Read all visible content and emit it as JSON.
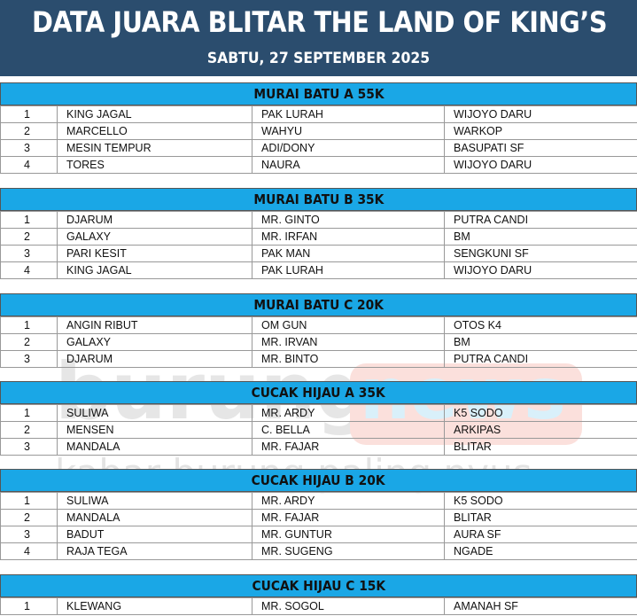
{
  "header": {
    "title": "DATA JUARA BLITAR THE LAND OF KING’S",
    "subtitle": "SABTU, 27 SEPTEMBER 2025"
  },
  "watermark": {
    "logo_text_1": "burung",
    "logo_text_2": "news",
    "tagline": "kabar burung paling nyus"
  },
  "colors": {
    "header_bg": "#2b4d6e",
    "section_bg": "#1aa7e6"
  },
  "sections": [
    {
      "title": "MURAI BATU A 55K",
      "rows": [
        [
          "1",
          "KING JAGAL",
          "PAK LURAH",
          "WIJOYO DARU"
        ],
        [
          "2",
          "MARCELLO",
          "WAHYU",
          "WARKOP"
        ],
        [
          "3",
          "MESIN TEMPUR",
          "ADI/DONY",
          "BASUPATI SF"
        ],
        [
          "4",
          "TORES",
          "NAURA",
          "WIJOYO DARU"
        ]
      ]
    },
    {
      "title": "MURAI BATU B 35K",
      "rows": [
        [
          "1",
          "DJARUM",
          "MR. GINTO",
          "PUTRA CANDI"
        ],
        [
          "2",
          "GALAXY",
          "MR. IRFAN",
          "BM"
        ],
        [
          "3",
          "PARI KESIT",
          "PAK MAN",
          "SENGKUNI SF"
        ],
        [
          "4",
          "KING JAGAL",
          "PAK LURAH",
          "WIJOYO DARU"
        ]
      ]
    },
    {
      "title": "MURAI BATU C 20K",
      "rows": [
        [
          "1",
          "ANGIN RIBUT",
          "OM GUN",
          "OTOS K4"
        ],
        [
          "2",
          "GALAXY",
          "MR. IRVAN",
          "BM"
        ],
        [
          "3",
          "DJARUM",
          "MR. BINTO",
          "PUTRA CANDI"
        ]
      ]
    },
    {
      "title": "CUCAK HIJAU A 35K",
      "rows": [
        [
          "1",
          "SULIWA",
          "MR. ARDY",
          "K5 SODO"
        ],
        [
          "2",
          "MENSEN",
          "C. BELLA",
          "ARKIPAS"
        ],
        [
          "3",
          "MANDALA",
          "MR. FAJAR",
          "BLITAR"
        ]
      ]
    },
    {
      "title": "CUCAK HIJAU B 20K",
      "rows": [
        [
          "1",
          "SULIWA",
          "MR. ARDY",
          "K5 SODO"
        ],
        [
          "2",
          "MANDALA",
          "MR. FAJAR",
          "BLITAR"
        ],
        [
          "3",
          "BADUT",
          "MR. GUNTUR",
          "AURA SF"
        ],
        [
          "4",
          "RAJA TEGA",
          "MR. SUGENG",
          "NGADE"
        ]
      ]
    },
    {
      "title": "CUCAK HIJAU C 15K",
      "rows": [
        [
          "1",
          "KLEWANG",
          "MR. SOGOL",
          "AMANAH SF"
        ]
      ]
    }
  ]
}
